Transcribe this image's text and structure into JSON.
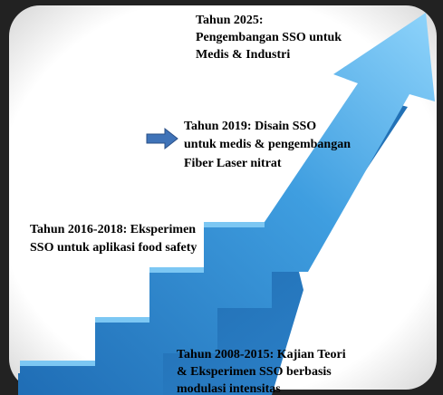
{
  "milestones": [
    {
      "lines": [
        "Tahun 2025:",
        "Pengembangan SSO untuk",
        "Medis & Industri"
      ]
    },
    {
      "lines": [
        "Tahun 2019: Disain SSO",
        "untuk medis & pengembangan",
        "Fiber Laser nitrat"
      ]
    },
    {
      "lines": [
        "Tahun 2016-2018: Eksperimen",
        "SSO untuk aplikasi food safety"
      ]
    },
    {
      "lines": [
        "Tahun 2008-2015: Kajian Teori",
        "& Eksperimen SSO berbasis",
        "modulasi intensitas"
      ]
    }
  ]
}
